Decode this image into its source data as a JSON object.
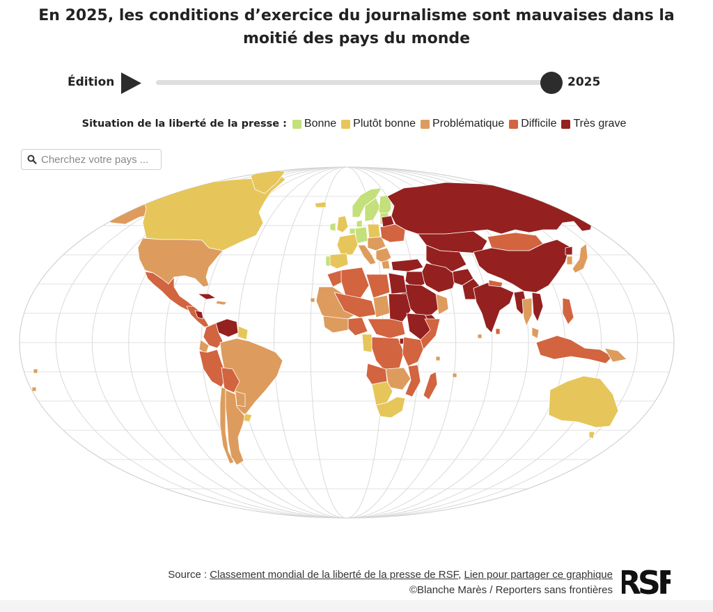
{
  "title": "En 2025, les conditions d’exercice du journalisme sont mauvaises dans la moitié des pays du monde",
  "edition": {
    "label": "Édition",
    "year": "2025",
    "progress": 1.0
  },
  "legend": {
    "title": "Situation de la liberté de la presse :",
    "items": [
      {
        "label": "Bonne",
        "color": "#c3e07a"
      },
      {
        "label": "Plutôt bonne",
        "color": "#e6c65a"
      },
      {
        "label": "Problématique",
        "color": "#dd9c5d"
      },
      {
        "label": "Difficile",
        "color": "#d2643f"
      },
      {
        "label": "Très grave",
        "color": "#94211f"
      }
    ]
  },
  "search": {
    "placeholder": "Cherchez votre pays ..."
  },
  "colors": {
    "graticule": "#d8d8d8",
    "outline": "#c9c9c9",
    "border": "#ffffff"
  },
  "icons": {
    "play": "play-icon",
    "search": "search-icon",
    "logo": "rsf-logo"
  },
  "footer": {
    "source_prefix": "Source : ",
    "source_link": "Classement mondial de la liberté de la presse de RSF",
    "separator": ", ",
    "share_link": "Lien pour partager ce graphique",
    "credit": "©Blanche Marès / Reporters sans frontières",
    "logo_text": "RSF"
  }
}
